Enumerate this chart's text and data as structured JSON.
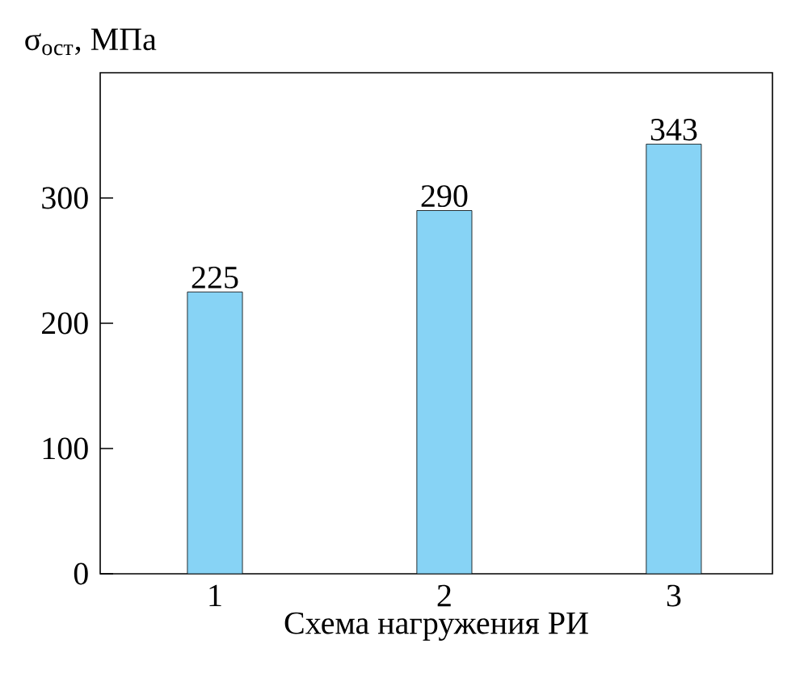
{
  "chart_data": {
    "type": "bar",
    "ylabel": "σ$_{ост}$, МПа",
    "xlabel": "Схема нагружения РИ",
    "categories": [
      "1",
      "2",
      "3"
    ],
    "values": [
      225,
      290,
      343
    ],
    "color": "#87d3f5",
    "ylim": [
      0,
      400
    ],
    "yticks": [
      0,
      100,
      200,
      300
    ],
    "data_labels": true
  }
}
